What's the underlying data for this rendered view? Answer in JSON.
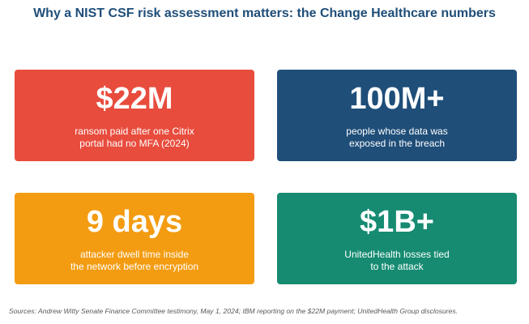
{
  "title": "Why a NIST CSF risk assessment matters: the Change Healthcare numbers",
  "cards": [
    {
      "value": "$22M",
      "description": "ransom paid after one Citrix\nportal had no MFA (2024)",
      "color": "#e84c3d"
    },
    {
      "value": "100M+",
      "description": "people whose data was\nexposed in the breach",
      "color": "#1f4e79"
    },
    {
      "value": "9 days",
      "description": "attacker dwell time inside\nthe network before encryption",
      "color": "#f39c12"
    },
    {
      "value": "$1B+",
      "description": "UnitedHealth losses tied\nto the attack",
      "color": "#168b72"
    }
  ],
  "sources": "Sources: Andrew Witty Senate Finance Committee testimony, May 1, 2024; IBM reporting on the $22M payment; UnitedHealth Group disclosures."
}
